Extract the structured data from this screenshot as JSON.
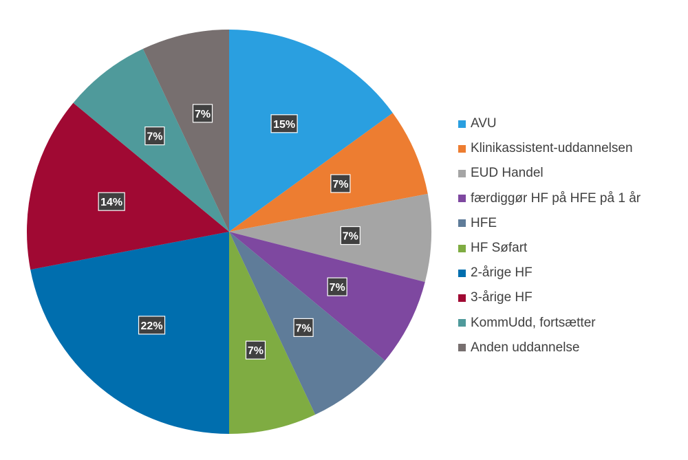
{
  "chart_data": {
    "type": "pie",
    "title": "",
    "slices": [
      {
        "label": "AVU",
        "value": 15,
        "color": "#2A9FE0"
      },
      {
        "label": "Klinikassistent-uddannelsen",
        "value": 7,
        "color": "#ED7D31"
      },
      {
        "label": "EUD Handel",
        "value": 7,
        "color": "#A5A5A5"
      },
      {
        "label": "færdiggør HF på HFE på 1 år",
        "value": 7,
        "color": "#7E48A0"
      },
      {
        "label": "HFE",
        "value": 7,
        "color": "#5F7C99"
      },
      {
        "label": "HF Søfart",
        "value": 7,
        "color": "#7FAC42"
      },
      {
        "label": "2-årige HF",
        "value": 22,
        "color": "#006EAE"
      },
      {
        "label": "3-årige HF",
        "value": 14,
        "color": "#A00933"
      },
      {
        "label": "KommUdd, fortsætter",
        "value": 7,
        "color": "#4F9A9B"
      },
      {
        "label": "Anden uddannelse",
        "value": 7,
        "color": "#776F6F"
      }
    ],
    "value_labels": [
      "15%",
      "7%",
      "7%",
      "7%",
      "7%",
      "7%",
      "22%",
      "14%",
      "7%",
      "7%"
    ],
    "legend_position": "right",
    "start_angle": "top, clockwise"
  }
}
